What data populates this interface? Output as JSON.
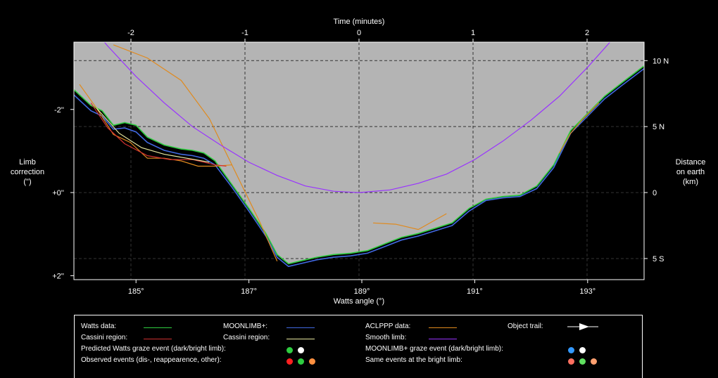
{
  "chart_data": {
    "type": "line",
    "title": "",
    "xlabel": "Watts angle (°)",
    "x2label": "Time (minutes)",
    "ylabel_left": [
      "Limb",
      "correction",
      "(\")"
    ],
    "ylabel_right": [
      "Distance",
      "on earth",
      "(km)"
    ],
    "xlim": [
      183.9,
      194.0
    ],
    "x_ticks": [
      {
        "v": 185,
        "label": "185°"
      },
      {
        "v": 187,
        "label": "187°"
      },
      {
        "v": 189,
        "label": "189°"
      },
      {
        "v": 191,
        "label": "191°"
      },
      {
        "v": 193,
        "label": "193°"
      }
    ],
    "time_ticks": [
      {
        "v": -2,
        "label": "-2"
      },
      {
        "v": -1,
        "label": "-1"
      },
      {
        "v": 0,
        "label": "0"
      },
      {
        "v": 1,
        "label": "1"
      },
      {
        "v": 2,
        "label": "2"
      }
    ],
    "time_zero_angle": 188.95,
    "angle_per_minute": 2.02,
    "ylim_km": [
      -6.6,
      11.4
    ],
    "left_ticks": [
      {
        "km": 6.3,
        "label": "-2''"
      },
      {
        "km": 0,
        "label": "+0''"
      },
      {
        "km": -6.3,
        "label": "+2''"
      }
    ],
    "right_ticks": [
      {
        "km": 10,
        "label": "10 N"
      },
      {
        "km": 5,
        "label": "5 N"
      },
      {
        "km": 0,
        "label": "0"
      },
      {
        "km": -5,
        "label": "5 S"
      }
    ],
    "series": [
      {
        "name": "Watts data:",
        "color": "#2ecc40",
        "x": [
          183.9,
          184.2,
          184.4,
          184.6,
          184.8,
          185.0,
          185.2,
          185.5,
          185.8,
          186.0,
          186.2,
          186.4,
          186.7,
          187.0,
          187.3,
          187.5,
          187.7,
          187.9,
          188.2,
          188.5,
          188.8,
          189.1,
          189.4,
          189.7,
          190.0,
          190.3,
          190.6,
          190.9,
          191.2,
          191.5,
          191.8,
          192.1,
          192.4,
          192.7,
          193.0,
          193.3,
          193.6,
          194.0
        ],
        "y": [
          7.8,
          6.6,
          6.2,
          5.1,
          5.3,
          5.1,
          4.2,
          3.6,
          3.3,
          3.2,
          3.0,
          2.4,
          0.6,
          -1.2,
          -3.1,
          -4.7,
          -5.4,
          -5.2,
          -4.9,
          -4.7,
          -4.6,
          -4.4,
          -3.9,
          -3.4,
          -3.1,
          -2.7,
          -2.3,
          -1.2,
          -0.5,
          -0.3,
          -0.2,
          0.5,
          2.1,
          4.7,
          6.0,
          7.3,
          8.3,
          9.6
        ]
      },
      {
        "name": "MOONLIMB+:",
        "color": "#4169e1",
        "x": [
          183.9,
          184.2,
          184.4,
          184.6,
          184.8,
          185.0,
          185.2,
          185.5,
          185.8,
          186.0,
          186.2,
          186.4,
          186.7,
          187.0,
          187.3,
          187.5,
          187.7,
          187.9,
          188.2,
          188.5,
          188.8,
          189.1,
          189.4,
          189.7,
          190.0,
          190.3,
          190.6,
          190.9,
          191.2,
          191.5,
          191.8,
          192.1,
          192.4,
          192.7,
          193.0,
          193.3,
          193.6,
          194.0
        ],
        "y": [
          7.4,
          6.2,
          5.8,
          4.8,
          4.9,
          4.6,
          3.8,
          3.2,
          2.9,
          2.8,
          2.6,
          2.1,
          0.4,
          -1.4,
          -3.3,
          -4.9,
          -5.6,
          -5.4,
          -5.1,
          -4.9,
          -4.8,
          -4.6,
          -4.1,
          -3.6,
          -3.3,
          -2.9,
          -2.5,
          -1.4,
          -0.6,
          -0.4,
          -0.3,
          0.3,
          1.9,
          4.5,
          5.8,
          7.1,
          8.1,
          9.4
        ]
      },
      {
        "name": "ACLPPP data:",
        "color": "#e08a1e",
        "x": [
          184.0,
          184.3,
          184.6,
          184.9,
          185.2,
          185.5,
          185.8,
          186.1,
          186.4,
          186.7
        ],
        "y": [
          8.2,
          6.4,
          4.4,
          3.8,
          2.6,
          2.6,
          2.4,
          2.0,
          2.0,
          2.1
        ]
      },
      {
        "name": "ACLPPP data:",
        "color": "#e08a1e",
        "x": [
          184.6,
          185.2,
          185.8,
          186.3,
          186.8,
          187.2,
          187.5
        ],
        "y": [
          11.2,
          10.2,
          8.5,
          5.6,
          1.2,
          -2.3,
          -5.2
        ]
      },
      {
        "name": "ACLPPP data:",
        "color": "#e08a1e",
        "x": [
          189.2,
          189.6,
          190.0,
          190.5
        ],
        "y": [
          -2.3,
          -2.4,
          -2.8,
          -1.6
        ]
      },
      {
        "name": "ACLPPP data:",
        "color": "#e08a1e",
        "x": [
          192.5,
          192.7,
          192.9,
          193.2
        ],
        "y": [
          3.0,
          4.5,
          5.5,
          6.8
        ]
      },
      {
        "name": "Cassini region:",
        "color": "#d03030",
        "x": [
          184.2,
          184.5,
          184.8,
          185.2,
          185.6,
          186.0,
          186.4,
          186.6
        ],
        "y": [
          6.8,
          4.9,
          3.7,
          2.8,
          2.5,
          2.5,
          2.1,
          2.0
        ]
      },
      {
        "name": "Cassini region:",
        "color": "#e8e8a0",
        "x": [
          184.3,
          184.7,
          185.1,
          185.5,
          185.9,
          186.3
        ],
        "y": [
          6.4,
          4.5,
          3.4,
          2.9,
          2.6,
          2.3
        ]
      },
      {
        "name": "Smooth limb:",
        "color": "#9933ff",
        "x": [
          183.9,
          184.5,
          185.0,
          185.5,
          186.0,
          186.5,
          187.0,
          187.5,
          188.0,
          188.5,
          188.95,
          189.5,
          190.0,
          190.5,
          191.0,
          191.5,
          192.0,
          192.5,
          193.0,
          193.5,
          194.0
        ],
        "y": [
          14.1,
          11.1,
          8.8,
          6.8,
          5.0,
          3.6,
          2.3,
          1.3,
          0.5,
          0.1,
          0.0,
          0.2,
          0.7,
          1.4,
          2.5,
          3.9,
          5.5,
          7.3,
          9.5,
          11.9,
          14.6
        ]
      }
    ]
  },
  "legend": {
    "watts": "Watts data:",
    "cassini_red": "Cassini region:",
    "pred_watts": "Predicted Watts graze event (dark/bright limb):",
    "observed": "Observed events (dis-, reappearence, other):",
    "moonlimb": "MOONLIMB+:",
    "cassini_yellow": "Cassini region:",
    "aclppp": "ACLPPP data:",
    "smooth": "Smooth limb:",
    "moonlimb_graze": "MOONLIMB+ graze event (dark/bright limb):",
    "same_bright": "Same events at the bright limb:",
    "trail": "Object trail:"
  },
  "colors": {
    "watts": "#2ecc40",
    "moonlimb": "#4169e1",
    "aclppp": "#e08a1e",
    "cassini_red": "#d03030",
    "cassini_yellow": "#e8e8a0",
    "smooth": "#9933ff",
    "moon": "#b4b4b4",
    "dot_green": "#2ecc40",
    "dot_white": "#ffffff",
    "dot_red": "#ff2020",
    "dot_orange": "#ff9040",
    "dot_blue": "#3399ff",
    "dot_salmon": "#ff7060",
    "dot_lightgreen": "#60e060",
    "dot_peach": "#ffa070"
  }
}
